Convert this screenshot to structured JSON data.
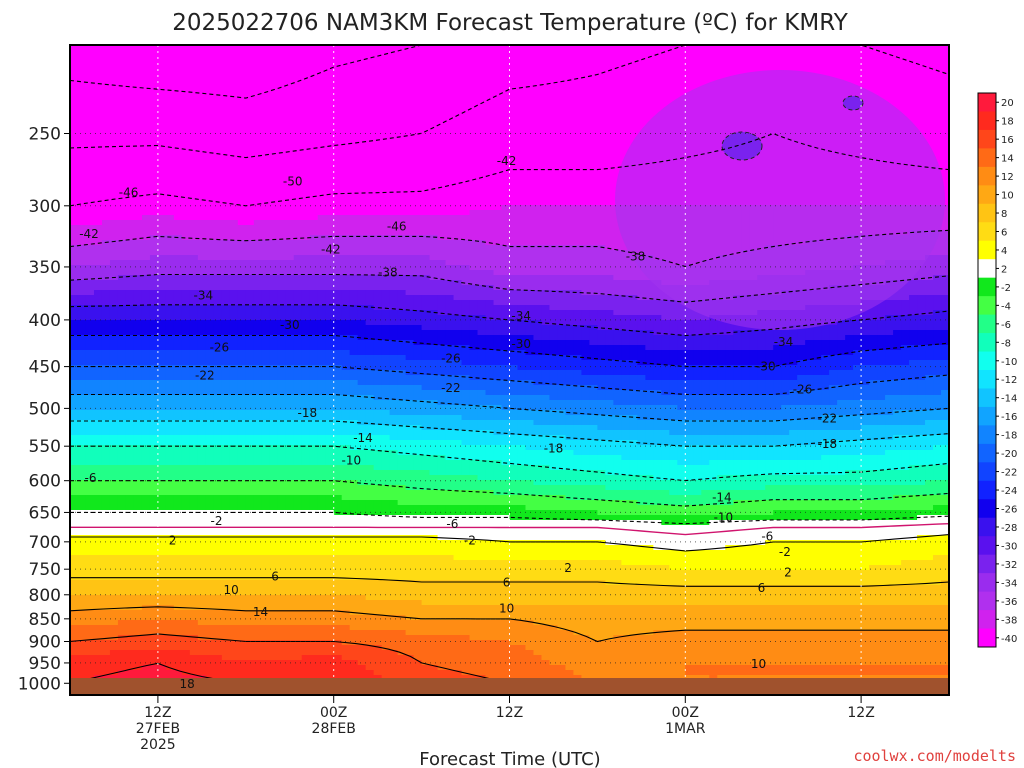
{
  "title": "2025022706 NAM3KM Forecast Temperature (ºC) for KMRY",
  "credit": "coolwx.com/modelts",
  "colors": {
    "ground": "#a0522d",
    "freezing_line": "#d0146e",
    "positive_contour": "#000000",
    "negative_contour": "#000000"
  },
  "chart_data": {
    "type": "heatmap",
    "title": "2025022706 NAM3KM Forecast Temperature (ºC) for KMRY",
    "xlabel": "Forecast Time (UTC)",
    "ylabel": "",
    "y_axis": {
      "unit": "hPa",
      "scale": "log",
      "reversed": true,
      "range": [
        1030,
        200
      ],
      "ticks": [
        250,
        300,
        350,
        400,
        450,
        500,
        550,
        600,
        650,
        700,
        750,
        800,
        850,
        900,
        950,
        1000
      ]
    },
    "x_axis": {
      "range_hours": [
        0,
        60
      ],
      "ticks": [
        {
          "hour": 6,
          "lines": [
            "12Z",
            "27FEB",
            "2025"
          ]
        },
        {
          "hour": 18,
          "lines": [
            "00Z",
            "28FEB"
          ]
        },
        {
          "hour": 30,
          "lines": [
            "12Z"
          ]
        },
        {
          "hour": 42,
          "lines": [
            "00Z",
            "1MAR"
          ]
        },
        {
          "hour": 54,
          "lines": [
            "12Z"
          ]
        }
      ]
    },
    "grid": true,
    "colorbar": {
      "placement": "right",
      "ticks": [
        20,
        18,
        16,
        14,
        12,
        10,
        8,
        6,
        4,
        2,
        -2,
        -4,
        -6,
        -8,
        -10,
        -12,
        -14,
        -16,
        -18,
        -20,
        -22,
        -24,
        -26,
        -28,
        -30,
        -32,
        -34,
        -36,
        -38,
        -40
      ],
      "bands": [
        {
          "min": 18,
          "max": 20,
          "color": "#ff1a3c"
        },
        {
          "min": 16,
          "max": 18,
          "color": "#ff2a1e"
        },
        {
          "min": 14,
          "max": 16,
          "color": "#ff461a"
        },
        {
          "min": 12,
          "max": 14,
          "color": "#ff6a16"
        },
        {
          "min": 10,
          "max": 12,
          "color": "#ff8c14"
        },
        {
          "min": 8,
          "max": 10,
          "color": "#ffa814"
        },
        {
          "min": 6,
          "max": 8,
          "color": "#ffc414"
        },
        {
          "min": 4,
          "max": 6,
          "color": "#ffdc14"
        },
        {
          "min": 2,
          "max": 4,
          "color": "#ffff00"
        },
        {
          "min": -2,
          "max": 2,
          "color": "#ffffff"
        },
        {
          "min": -4,
          "max": -2,
          "color": "#11e81c"
        },
        {
          "min": -6,
          "max": -4,
          "color": "#44ff44"
        },
        {
          "min": -8,
          "max": -6,
          "color": "#22ff88"
        },
        {
          "min": -10,
          "max": -8,
          "color": "#11ffbb"
        },
        {
          "min": -12,
          "max": -10,
          "color": "#11ffee"
        },
        {
          "min": -14,
          "max": -12,
          "color": "#11e4ff"
        },
        {
          "min": -16,
          "max": -14,
          "color": "#11c4ff"
        },
        {
          "min": -18,
          "max": -16,
          "color": "#11a4ff"
        },
        {
          "min": -20,
          "max": -18,
          "color": "#1184ff"
        },
        {
          "min": -22,
          "max": -20,
          "color": "#1164ff"
        },
        {
          "min": -24,
          "max": -22,
          "color": "#1144ff"
        },
        {
          "min": -26,
          "max": -24,
          "color": "#1122ff"
        },
        {
          "min": -28,
          "max": -26,
          "color": "#1100ee"
        },
        {
          "min": -30,
          "max": -28,
          "color": "#3a11ee"
        },
        {
          "min": -32,
          "max": -30,
          "color": "#5a11ee"
        },
        {
          "min": -34,
          "max": -32,
          "color": "#7a22ee"
        },
        {
          "min": -36,
          "max": -34,
          "color": "#9a2cee"
        },
        {
          "min": -38,
          "max": -36,
          "color": "#b030ee"
        },
        {
          "min": -40,
          "max": -38,
          "color": "#d022ee"
        },
        {
          "min": -46,
          "max": -40,
          "color": "#ff00ff"
        }
      ]
    },
    "layers_note_levels_hPa": [
      1000,
      950,
      900,
      850,
      800,
      750,
      700,
      675,
      650,
      600,
      550,
      500,
      450,
      400,
      350,
      300,
      250,
      200
    ],
    "series": [
      {
        "hour": 0,
        "temps_C": [
          18,
          17,
          14,
          11,
          8,
          5,
          3,
          0,
          -2,
          -6,
          -10,
          -16,
          -22,
          -28,
          -36,
          -42,
          -47,
          -52
        ]
      },
      {
        "hour": 6,
        "temps_C": [
          19,
          18,
          15,
          12,
          8,
          5,
          3,
          0,
          -2,
          -6,
          -10,
          -16,
          -22,
          -28,
          -35,
          -41,
          -47,
          -53
        ]
      },
      {
        "hour": 12,
        "temps_C": [
          18,
          16,
          14,
          11,
          8,
          5,
          3,
          0,
          -2,
          -6,
          -10,
          -16,
          -22,
          -28,
          -35,
          -42,
          -48,
          -53
        ]
      },
      {
        "hour": 18,
        "temps_C": [
          18,
          17,
          14,
          11,
          8,
          5,
          3,
          0,
          -2,
          -6,
          -10,
          -16,
          -22,
          -28,
          -35,
          -41,
          -47,
          -51
        ]
      },
      {
        "hour": 24,
        "temps_C": [
          15,
          14,
          13,
          10,
          7,
          5,
          3,
          0,
          -3,
          -7,
          -11,
          -17,
          -23,
          -29,
          -35,
          -41,
          -46,
          -50
        ]
      },
      {
        "hour": 30,
        "temps_C": [
          14,
          13,
          12,
          10,
          7,
          5,
          2,
          0,
          -3,
          -8,
          -12,
          -18,
          -24,
          -30,
          -37,
          -40,
          -44,
          -48
        ]
      },
      {
        "hour": 36,
        "temps_C": [
          12,
          11,
          10,
          9,
          7,
          5,
          2,
          0,
          -4,
          -9,
          -13,
          -19,
          -25,
          -31,
          -37,
          -40,
          -44,
          -47
        ]
      },
      {
        "hour": 42,
        "temps_C": [
          12,
          12,
          11,
          9,
          7,
          4,
          1,
          -1,
          -5,
          -10,
          -14,
          -20,
          -26,
          -32,
          -38,
          -40,
          -43,
          -46
        ]
      },
      {
        "hour": 48,
        "temps_C": [
          12,
          12,
          11,
          9,
          7,
          4,
          2,
          0,
          -4,
          -9,
          -14,
          -20,
          -26,
          -31,
          -37,
          -40,
          -42,
          -45
        ]
      },
      {
        "hour": 54,
        "temps_C": [
          12,
          12,
          11,
          9,
          7,
          4,
          2,
          0,
          -4,
          -9,
          -13,
          -19,
          -24,
          -30,
          -36,
          -40,
          -43,
          -46
        ]
      },
      {
        "hour": 60,
        "temps_C": [
          12,
          12,
          11,
          9,
          7,
          5,
          3,
          1,
          -3,
          -8,
          -12,
          -18,
          -23,
          -29,
          -35,
          -40,
          -44,
          -47
        ]
      }
    ],
    "contour_labels": [
      {
        "text": "-50",
        "hour": 15.2,
        "p": 282
      },
      {
        "text": "-46",
        "hour": 4.0,
        "p": 290
      },
      {
        "text": "-46",
        "hour": 22.3,
        "p": 316
      },
      {
        "text": "-42",
        "hour": 1.3,
        "p": 322
      },
      {
        "text": "-42",
        "hour": 17.8,
        "p": 335
      },
      {
        "text": "-42",
        "hour": 29.8,
        "p": 268
      },
      {
        "text": "-38",
        "hour": 21.7,
        "p": 355
      },
      {
        "text": "-38",
        "hour": 38.6,
        "p": 341
      },
      {
        "text": "-34",
        "hour": 9.1,
        "p": 376
      },
      {
        "text": "-34",
        "hour": 30.8,
        "p": 396
      },
      {
        "text": "-34",
        "hour": 48.7,
        "p": 423
      },
      {
        "text": "-30",
        "hour": 15.0,
        "p": 405
      },
      {
        "text": "-30",
        "hour": 30.8,
        "p": 425
      },
      {
        "text": "-30",
        "hour": 47.5,
        "p": 450
      },
      {
        "text": "-26",
        "hour": 10.2,
        "p": 429
      },
      {
        "text": "-26",
        "hour": 26.0,
        "p": 441
      },
      {
        "text": "-26",
        "hour": 50.0,
        "p": 477
      },
      {
        "text": "-22",
        "hour": 9.2,
        "p": 460
      },
      {
        "text": "-22",
        "hour": 26.0,
        "p": 475
      },
      {
        "text": "-22",
        "hour": 51.7,
        "p": 513
      },
      {
        "text": "-18",
        "hour": 16.2,
        "p": 506
      },
      {
        "text": "-18",
        "hour": 33.0,
        "p": 553
      },
      {
        "text": "-18",
        "hour": 51.7,
        "p": 547
      },
      {
        "text": "-14",
        "hour": 20.0,
        "p": 539
      },
      {
        "text": "-14",
        "hour": 44.5,
        "p": 626
      },
      {
        "text": "-10",
        "hour": 19.2,
        "p": 570
      },
      {
        "text": "-10",
        "hour": 44.6,
        "p": 658
      },
      {
        "text": "-6",
        "hour": 1.4,
        "p": 596
      },
      {
        "text": "-6",
        "hour": 26.1,
        "p": 669
      },
      {
        "text": "-6",
        "hour": 47.6,
        "p": 691
      },
      {
        "text": "-2",
        "hour": 10.0,
        "p": 664
      },
      {
        "text": "-2",
        "hour": 27.3,
        "p": 698
      },
      {
        "text": "-2",
        "hour": 48.8,
        "p": 718
      },
      {
        "text": "2",
        "hour": 7.0,
        "p": 698
      },
      {
        "text": "2",
        "hour": 34.0,
        "p": 748
      },
      {
        "text": "2",
        "hour": 49.0,
        "p": 756
      },
      {
        "text": "6",
        "hour": 14.0,
        "p": 764
      },
      {
        "text": "6",
        "hour": 29.8,
        "p": 776
      },
      {
        "text": "6",
        "hour": 47.2,
        "p": 786
      },
      {
        "text": "10",
        "hour": 11.0,
        "p": 790
      },
      {
        "text": "10",
        "hour": 29.8,
        "p": 828
      },
      {
        "text": "10",
        "hour": 47.0,
        "p": 953
      },
      {
        "text": "14",
        "hour": 13.0,
        "p": 835
      },
      {
        "text": "18",
        "hour": 8.0,
        "p": 1002
      }
    ]
  }
}
